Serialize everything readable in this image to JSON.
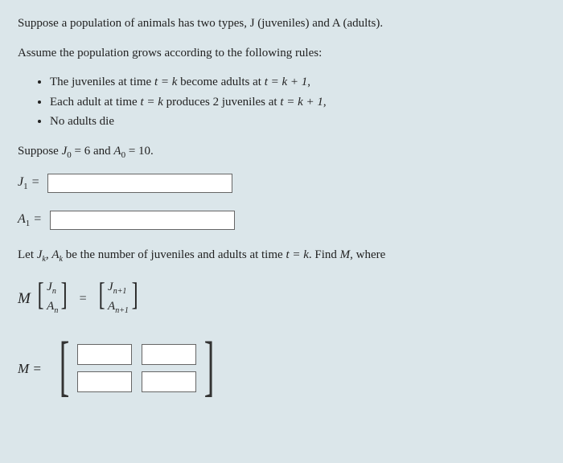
{
  "intro1": "Suppose a population of animals has two types, J (juveniles) and A (adults).",
  "intro2": "Assume the population grows according to the following rules:",
  "rules": {
    "r1_a": "The juveniles at time ",
    "r1_b": " become adults at ",
    "r1_c": ",",
    "r2_a": "Each adult at time ",
    "r2_b": " produces 2 juveniles at ",
    "r2_c": ",",
    "r3": "No adults die"
  },
  "tk": "t = k",
  "tk1": "t = k + 1",
  "suppose_a": "Suppose ",
  "suppose_j0": "J",
  "suppose_j0sub": "0",
  "suppose_j0val": " = 6",
  "suppose_and": " and ",
  "suppose_a0": "A",
  "suppose_a0sub": "0",
  "suppose_a0val": " = 10.",
  "j1_label_sym": "J",
  "j1_label_sub": "1",
  "eq": " =",
  "a1_label_sym": "A",
  "a1_label_sub": "1",
  "let_a": "Let ",
  "let_jk": "J",
  "let_jksub": "k",
  "let_comma": ", ",
  "let_ak": "A",
  "let_aksub": "k",
  "let_b": " be the number of juveniles and adults at time ",
  "let_tk": "t = k",
  "let_c": ". Find ",
  "let_M": "M",
  "let_d": ", where",
  "vecJn": "J",
  "vecJn_sub": "n",
  "vecAn": "A",
  "vecAn_sub": "n",
  "vecJn1": "J",
  "vecJn1_sub": "n+1",
  "vecAn1": "A",
  "vecAn1_sub": "n+1",
  "M_sym": "M",
  "eq2": "=",
  "inputs": {
    "j1_value": "",
    "a1_value": "",
    "m11": "",
    "m12": "",
    "m21": "",
    "m22": ""
  },
  "colors": {
    "bg": "#dbe6ea",
    "text": "#222222",
    "input_border": "#666666",
    "input_bg": "#ffffff"
  }
}
